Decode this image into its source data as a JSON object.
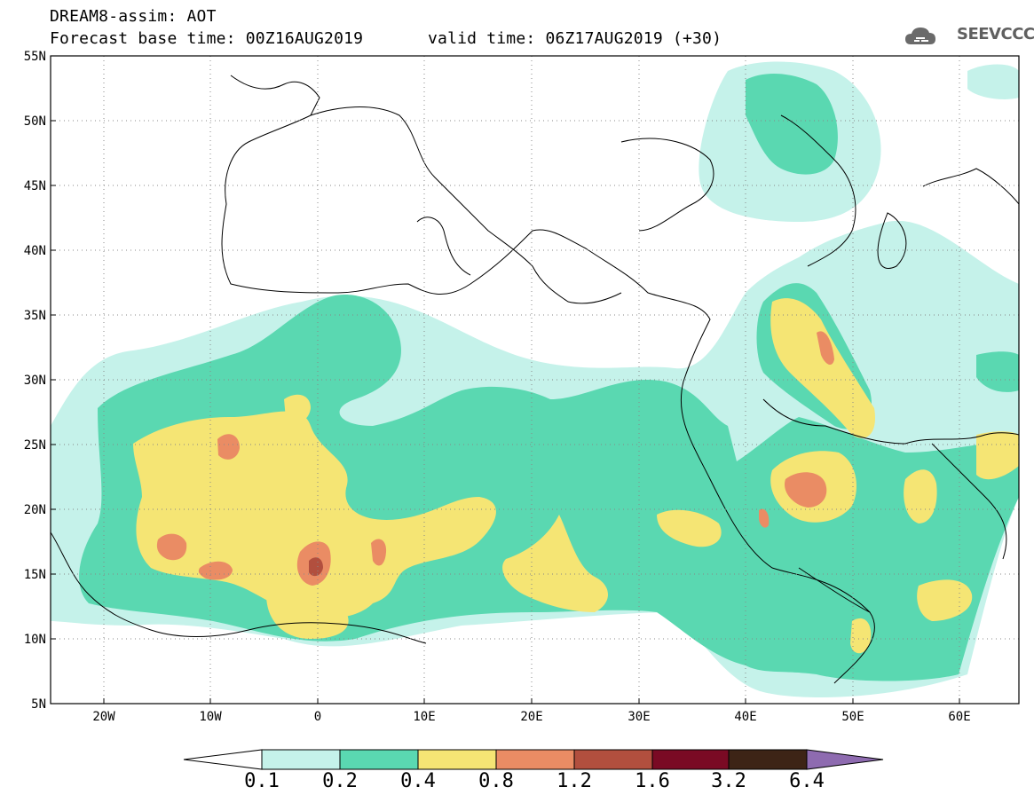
{
  "header": {
    "line1": "DREAM8-assim: AOT",
    "line2": "Forecast base time: 00Z16AUG2019",
    "line2b": "valid time: 06Z17AUG2019 (+30)",
    "logo_text": "SEEVCCC"
  },
  "axes": {
    "lat_ticks": [
      "55N",
      "50N",
      "45N",
      "40N",
      "35N",
      "30N",
      "25N",
      "20N",
      "15N",
      "10N",
      "5N"
    ],
    "lon_ticks": [
      "20W",
      "10W",
      "0",
      "10E",
      "20E",
      "30E",
      "40E",
      "50E",
      "60E"
    ]
  },
  "colorbar": {
    "labels": [
      "0.1",
      "0.2",
      "0.4",
      "0.8",
      "1.2",
      "1.6",
      "3.2",
      "6.4"
    ],
    "colors": [
      "#ffffff",
      "#c5f2ea",
      "#5ad8b1",
      "#f5e574",
      "#ea8c64",
      "#b24f3e",
      "#7a0a24",
      "#3d2416",
      "#8e6bb0"
    ]
  },
  "colors": {
    "level_01": "#c5f2ea",
    "level_02": "#5ad8b1",
    "level_04": "#f5e574",
    "level_08": "#ea8c64",
    "level_12": "#b24f3e",
    "coastline": "#000000"
  }
}
